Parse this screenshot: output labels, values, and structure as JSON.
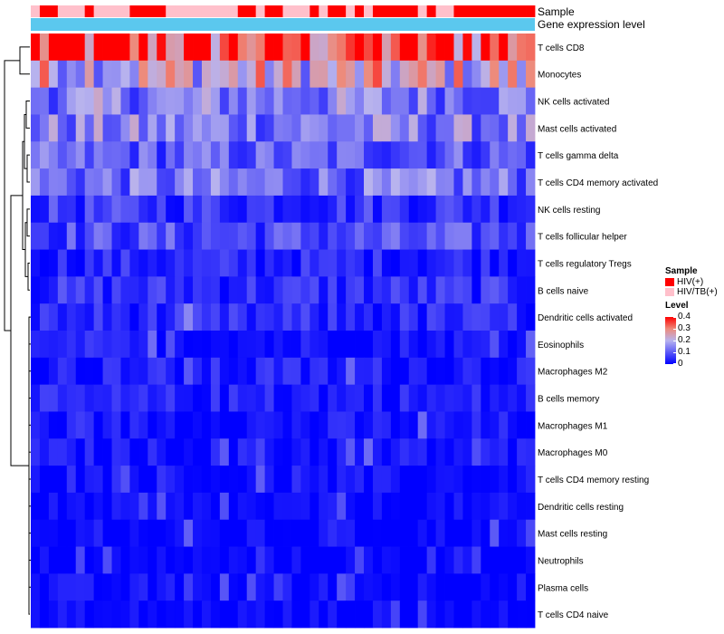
{
  "chart_data": {
    "type": "heatmap",
    "annotations": [
      {
        "name": "Sample",
        "values": [
          "HIV/TB(+)",
          "HIV(+)",
          "HIV(+)",
          "HIV/TB(+)",
          "HIV/TB(+)",
          "HIV/TB(+)",
          "HIV(+)",
          "HIV/TB(+)",
          "HIV/TB(+)",
          "HIV/TB(+)",
          "HIV/TB(+)",
          "HIV(+)",
          "HIV(+)",
          "HIV(+)",
          "HIV(+)",
          "HIV/TB(+)",
          "HIV/TB(+)",
          "HIV/TB(+)",
          "HIV/TB(+)",
          "HIV/TB(+)",
          "HIV/TB(+)",
          "HIV/TB(+)",
          "HIV/TB(+)",
          "HIV(+)",
          "HIV(+)",
          "HIV/TB(+)",
          "HIV(+)",
          "HIV(+)",
          "HIV/TB(+)",
          "HIV/TB(+)",
          "HIV/TB(+)",
          "HIV(+)",
          "HIV/TB(+)",
          "HIV(+)",
          "HIV(+)",
          "HIV/TB(+)",
          "HIV(+)",
          "HIV/TB(+)",
          "HIV(+)",
          "HIV(+)",
          "HIV(+)",
          "HIV(+)",
          "HIV(+)",
          "HIV/TB(+)",
          "HIV(+)",
          "HIV/TB(+)",
          "HIV/TB(+)",
          "HIV(+)",
          "HIV(+)",
          "HIV(+)",
          "HIV(+)",
          "HIV(+)",
          "HIV(+)",
          "HIV(+)",
          "HIV(+)",
          "HIV(+)"
        ]
      },
      {
        "name": "Gene expression level",
        "values": "uniform"
      }
    ],
    "rows": [
      "T cells CD8",
      "Monocytes",
      "NK cells activated",
      "Mast cells activated",
      "T cells gamma delta",
      "T cells CD4 memory activated",
      "NK cells resting",
      "T cells follicular helper",
      "T cells regulatory  Tregs",
      "B cells naive",
      "Dendritic cells activated",
      "Eosinophils",
      "Macrophages M2",
      "B cells memory",
      "Macrophages M1",
      "Macrophages M0",
      "T cells CD4 memory resting",
      "Dendritic cells resting",
      "Mast cells resting",
      "Neutrophils",
      "Plasma cells",
      "T cells CD4 naive"
    ],
    "row_base_levels": [
      0.36,
      0.22,
      0.14,
      0.14,
      0.1,
      0.12,
      0.06,
      0.08,
      0.04,
      0.05,
      0.04,
      0.02,
      0.03,
      0.03,
      0.02,
      0.02,
      0.01,
      0.005,
      0.005,
      0.0,
      0.01,
      0.005
    ],
    "n_columns": 56,
    "color_scale": {
      "title": "Level",
      "stops": [
        0,
        0.2,
        0.3,
        0.4
      ],
      "colors": [
        "#0000ff",
        "#b8b3ee",
        "#ee8a7a",
        "#ff0000"
      ],
      "ticks": [
        "0.4",
        "0.3",
        "0.2",
        "0.1",
        "0"
      ]
    },
    "legend": {
      "sample_title": "Sample",
      "sample_items": [
        {
          "label": "HIV(+)",
          "color": "#ff0000"
        },
        {
          "label": "HIV/TB(+)",
          "color": "#ffc0cb"
        }
      ],
      "placement": "right"
    }
  },
  "colors": {
    "hiv": "#ff0000",
    "hivtb": "#ffc0cb",
    "gene_expression": "#5bc8ee"
  }
}
